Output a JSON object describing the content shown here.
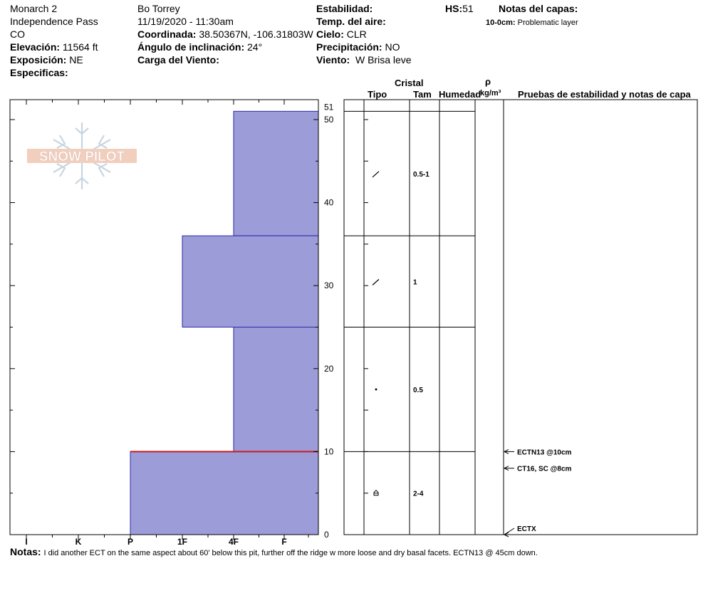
{
  "header": {
    "location_name": "Monarch 2",
    "region": "Independence Pass",
    "state": "CO",
    "elevation_label": "Elevación:",
    "elevation_value": "11564 ft",
    "aspect_label": "Exposición:",
    "aspect_value": "NE",
    "specifics_label": "Especificas:",
    "observer": "Bo Torrey",
    "datetime": "11/19/2020 - 11:30am",
    "coord_label": "Coordinada:",
    "coord_value": "38.50367N, -106.31803W",
    "slope_label": "Ángulo de inclinación:",
    "slope_value": "24°",
    "wind_load_label": "Carga del Viento:",
    "stability_label": "Estabilidad:",
    "air_temp_label": "Temp. del aire:",
    "sky_label": "Cielo:",
    "sky_value": "CLR",
    "precip_label": "Precipitación:",
    "precip_value": "NO",
    "wind_label": "Viento:",
    "wind_value": "W Brisa leve",
    "hs_label": "HS:",
    "hs_value": "51",
    "layer_notes_label": "Notas del capas:",
    "layer_note_depth": "10-0cm:",
    "layer_note_text": "Problematic layer"
  },
  "logo": {
    "text": "SNOW PILOT"
  },
  "columns": {
    "crystal": "Cristal",
    "type": "Tipo",
    "size": "Tam",
    "moisture": "Humedad",
    "rho": "ρ",
    "density_unit": "kg/m³",
    "tests": "Pruebas de estabilidad y notas de capa"
  },
  "notes": {
    "label": "Notas:",
    "text": "I did another ECT on the same aspect about 60' below this pit, further off the ridge w more loose and dry basal facets. ECTN13 @ 45cm down."
  },
  "chart_data": {
    "type": "bar",
    "title": "",
    "xlabel": "",
    "ylabel": "",
    "hardness_scale": [
      "I",
      "K",
      "P",
      "1F",
      "4F",
      "F"
    ],
    "hardness_scale_value": {
      "F": 1,
      "4F": 2,
      "1F": 3,
      "P": 4,
      "K": 5,
      "I": 6
    },
    "ylim": [
      0,
      51
    ],
    "y_ticks": [
      0,
      10,
      20,
      30,
      40,
      50
    ],
    "top_label": "51",
    "layers": [
      {
        "bottom": 36,
        "top": 51,
        "hardness": "4F",
        "grain_size": "0.5-1",
        "grain_type": "facets-rounding"
      },
      {
        "bottom": 25,
        "top": 36,
        "hardness": "1F",
        "grain_size": "1",
        "grain_type": "facets-rounding"
      },
      {
        "bottom": 10,
        "top": 25,
        "hardness": "4F",
        "grain_size": "0.5",
        "grain_type": "rounds"
      },
      {
        "bottom": 0,
        "top": 10,
        "hardness": "P",
        "grain_size": "2-4",
        "grain_type": "depth-hoar"
      }
    ],
    "red_line_depth": 10,
    "tests": [
      {
        "label": "ECTN13 @10cm",
        "depth": 10
      },
      {
        "label": "CT16, SC @8cm",
        "depth": 8
      },
      {
        "label": "ECTX",
        "depth": 0
      }
    ],
    "colors": {
      "bar_fill": "#9C9CD8",
      "bar_stroke": "#2A2AA8",
      "red_line": "#C81E1E"
    }
  }
}
